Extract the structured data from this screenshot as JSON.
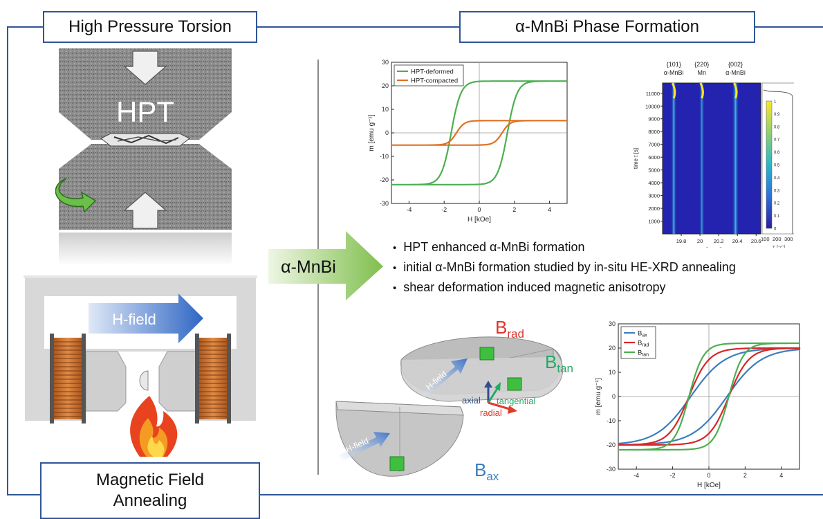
{
  "titles": {
    "hpt": "High Pressure Torsion",
    "phase": "α-MnBi Phase Formation",
    "mfa_line1": "Magnetic Field",
    "mfa_line2": "Annealing"
  },
  "hpt_label": "HPT",
  "hfield_label": "H-field",
  "arrow_label": "α-MnBi",
  "bullets": [
    "HPT enhanced α-MnBi formation",
    "initial α-MnBi formation studied by in-situ HE-XRD annealing",
    "shear deformation induced magnetic anisotropy"
  ],
  "sample": {
    "hfield_top": "H-field",
    "hfield_bottom": "H-field",
    "axial": "axial",
    "tangential": "tangential",
    "radial": "radial",
    "B_rad": {
      "base": "B",
      "sub": "rad"
    },
    "B_tan": {
      "base": "B",
      "sub": "tan"
    },
    "B_ax": {
      "base": "B",
      "sub": "ax"
    }
  },
  "colors": {
    "frame": "#2f5597",
    "green_series": "#4caf50",
    "orange_series": "#e07020",
    "blue_series": "#3a7dbf",
    "red_series": "#d62728"
  },
  "chart_data": [
    {
      "type": "line",
      "xlabel": "H [kOe]",
      "ylabel": "m [emu g⁻¹]",
      "xlim": [
        -5,
        5
      ],
      "ylim": [
        -30,
        30
      ],
      "xticks": [
        -4,
        -2,
        0,
        2,
        4
      ],
      "yticks": [
        -30,
        -20,
        -10,
        0,
        10,
        20,
        30
      ],
      "legend": "top-left",
      "series": [
        {
          "name": "HPT-deformed",
          "color": "#4caf50",
          "ms": 22,
          "hc": 1.6,
          "w": 0.55
        },
        {
          "name": "HPT-compacted",
          "color": "#e07020",
          "ms": 5.2,
          "hc": 1.3,
          "w": 0.45
        }
      ]
    },
    {
      "type": "heatmap",
      "xlabel": "q [nm⁻¹]",
      "ylabel": "time t [s]",
      "xlim": [
        19.6,
        20.65
      ],
      "ylim": [
        0,
        11800
      ],
      "xticks": [
        "19.8",
        "20",
        "20.2",
        "20.4",
        "20.6"
      ],
      "yticks": [
        "1000",
        "2000",
        "3000",
        "4000",
        "5000",
        "6000",
        "7000",
        "8000",
        "9000",
        "10000",
        "11000"
      ],
      "peak_labels": [
        {
          "hkl": "{101}",
          "phase": "α-MnBi",
          "q": 19.72
        },
        {
          "hkl": "{220}",
          "phase": "Mn",
          "q": 20.02
        },
        {
          "hkl": "{002}",
          "phase": "α-MnBi",
          "q": 20.38
        }
      ],
      "colorbar_ticks": [
        "0",
        "0.1",
        "0.2",
        "0.3",
        "0.4",
        "0.5",
        "0.6",
        "0.7",
        "0.8",
        "0.9",
        "1"
      ],
      "temp_axis": {
        "label": "T [°C]",
        "ticks": [
          "100",
          "200",
          "300"
        ]
      }
    },
    {
      "type": "line",
      "xlabel": "H [kOe]",
      "ylabel": "m [emu g⁻¹]",
      "xlim": [
        -5,
        5
      ],
      "ylim": [
        -30,
        30
      ],
      "xticks": [
        -4,
        -2,
        0,
        2,
        4
      ],
      "yticks": [
        -30,
        -20,
        -10,
        0,
        10,
        20,
        30
      ],
      "legend": "top-left",
      "series": [
        {
          "name": "B_ax",
          "label_base": "B",
          "label_sub": "ax",
          "color": "#3a7dbf",
          "ms": 20,
          "hc": 1.0,
          "w": 1.9
        },
        {
          "name": "B_rad",
          "label_base": "B",
          "label_sub": "rad",
          "color": "#d62728",
          "ms": 20,
          "hc": 1.1,
          "w": 1.1
        },
        {
          "name": "B_tan",
          "label_base": "B",
          "label_sub": "tan",
          "color": "#4caf50",
          "ms": 22,
          "hc": 1.1,
          "w": 0.8
        }
      ]
    }
  ]
}
